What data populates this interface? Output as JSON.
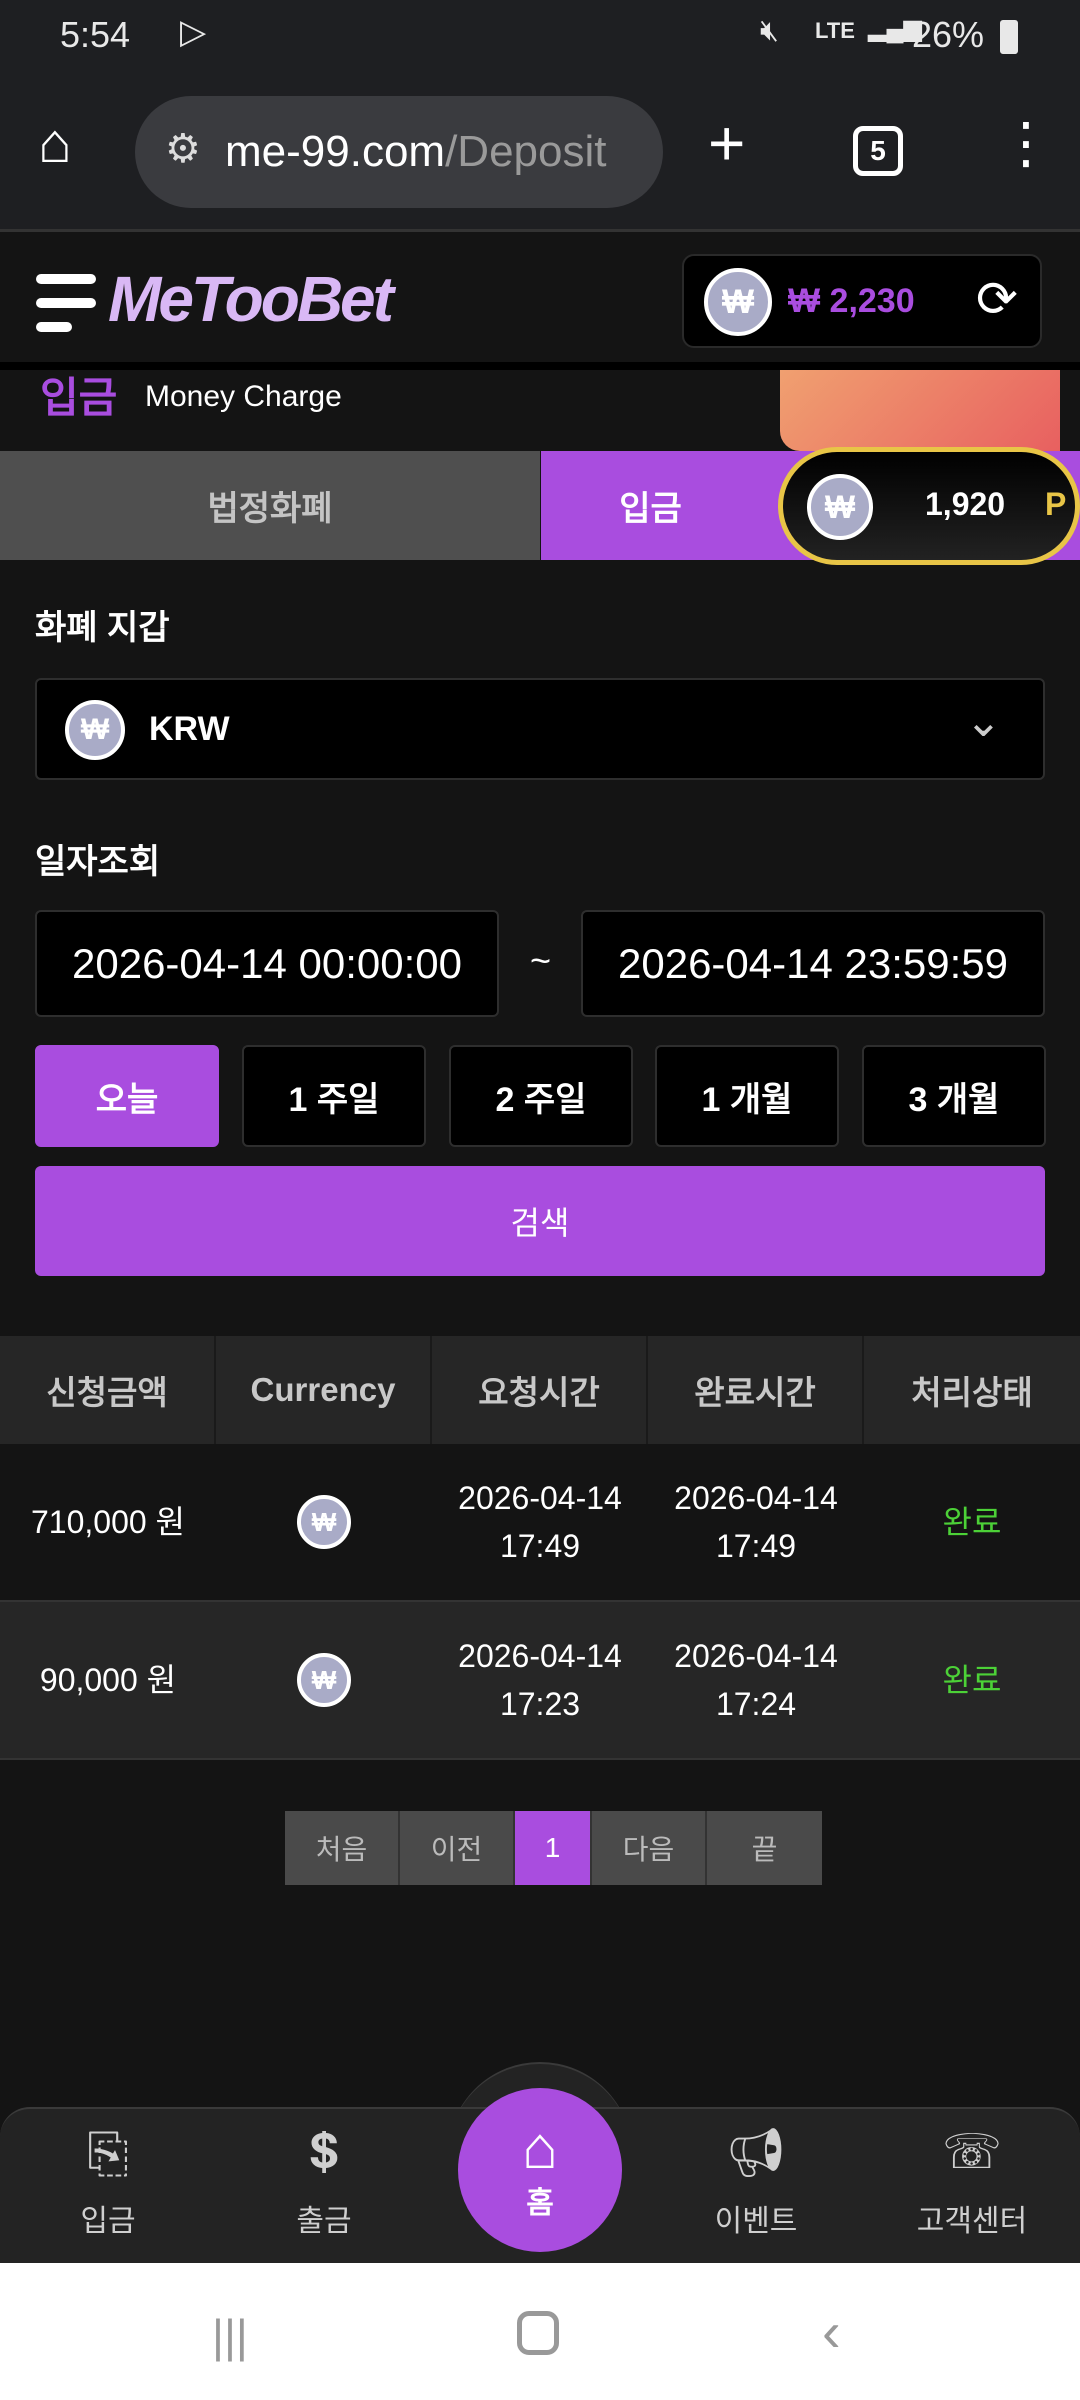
{
  "status_bar": {
    "time": "5:54",
    "network": "LTE",
    "battery": "26%"
  },
  "browser": {
    "url_host": "me-99.com",
    "url_path": "/Deposit",
    "tab_count": "5"
  },
  "header": {
    "logo": "MeTooBet",
    "balance": "₩ 2,230",
    "point_balance": "1,920",
    "point_unit": "P"
  },
  "banner": {
    "title_ko": "입금",
    "title_en": "Money Charge"
  },
  "tabs": [
    {
      "label": "법정화폐",
      "active": false
    },
    {
      "label": "입금",
      "active": true
    }
  ],
  "wallet": {
    "label": "화폐 지갑",
    "selected": "KRW"
  },
  "date_query": {
    "label": "일자조회",
    "from": "2026-04-14 00:00:00",
    "separator": "~",
    "to": "2026-04-14 23:59:59",
    "ranges": [
      "오늘",
      "1 주일",
      "2 주일",
      "1 개월",
      "3 개월"
    ],
    "search_label": "검색"
  },
  "table": {
    "headers": [
      "신청금액",
      "Currency",
      "요청시간",
      "완료시간",
      "처리상태"
    ],
    "rows": [
      {
        "amount": "710,000 원",
        "req_date": "2026-04-14",
        "req_time": "17:49",
        "done_date": "2026-04-14",
        "done_time": "17:49",
        "status": "완료"
      },
      {
        "amount": "90,000 원",
        "req_date": "2026-04-14",
        "req_time": "17:23",
        "done_date": "2026-04-14",
        "done_time": "17:24",
        "status": "완료"
      }
    ]
  },
  "pagination": {
    "first": "처음",
    "prev": "이전",
    "current": "1",
    "next": "다음",
    "last": "끝"
  },
  "bottom_nav": [
    {
      "label": "입금",
      "icon": "deposit-icon"
    },
    {
      "label": "출금",
      "icon": "withdraw-icon"
    },
    {
      "label": "홈",
      "icon": "home-icon"
    },
    {
      "label": "이벤트",
      "icon": "megaphone-icon"
    },
    {
      "label": "고객센터",
      "icon": "support-24-icon"
    }
  ],
  "colors": {
    "accent": "#a94ddf",
    "success": "#4cd137",
    "gold": "#e8c547"
  }
}
